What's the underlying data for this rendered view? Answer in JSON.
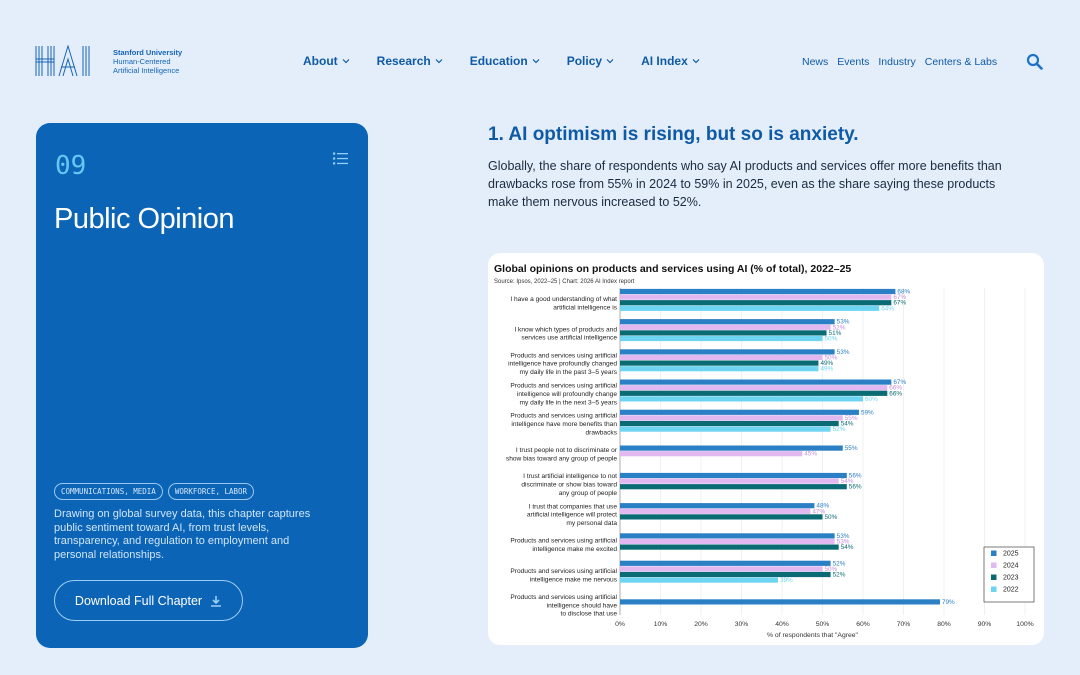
{
  "logo": {
    "abbr": "HAI",
    "line1": "Stanford University",
    "line2": "Human-Centered",
    "line3": "Artificial Intelligence"
  },
  "nav": {
    "main": [
      "About",
      "Research",
      "Education",
      "Policy",
      "AI Index"
    ],
    "secondary": [
      "News",
      "Events",
      "Industry",
      "Centers & Labs"
    ]
  },
  "card": {
    "chapter_number": "09",
    "title": "Public Opinion",
    "tags": [
      "COMMUNICATIONS, MEDIA",
      "WORKFORCE, LABOR"
    ],
    "description": "Drawing on global survey data, this chapter captures public sentiment toward AI, from  trust levels, transparency, and regulation to employment and personal relationships.",
    "download_label": "Download Full Chapter"
  },
  "section": {
    "heading": "1. AI optimism is rising, but so is anxiety.",
    "body": "Globally, the share of respondents who say AI products and services offer more benefits than drawbacks rose from 55% in 2024 to 59% in 2025, even as the share saying these products make them nervous increased to 52%."
  },
  "colors": {
    "accent": "#0f5aa6",
    "card": "#0c64b6",
    "s2025": "#2b7fc4",
    "s2024": "#e1b8f0",
    "s2023": "#0b6b74",
    "s2022": "#6fd4f1"
  },
  "chart_data": {
    "type": "bar",
    "orientation": "horizontal",
    "title": "Global opinions on products and services using AI (% of total), 2022–25",
    "subtitle": "Source: Ipsos, 2022–25 | Chart: 2026 AI Index report",
    "xlabel": "% of respondents that \"Agree\"",
    "xlim": [
      0,
      100
    ],
    "xticks": [
      "0%",
      "10%",
      "20%",
      "30%",
      "40%",
      "50%",
      "60%",
      "70%",
      "80%",
      "90%",
      "100%"
    ],
    "legend_position": "bottom-right",
    "categories": [
      [
        "I have a good understanding of what",
        "artificial intelligence is"
      ],
      [
        "I know which types of products and",
        "services use artificial intelligence"
      ],
      [
        "Products and services using artificial",
        "intelligence have profoundly changed",
        "my daily life in the past 3–5 years"
      ],
      [
        "Products and services using artificial",
        "intelligence will profoundly change",
        "my daily life in the next 3–5 years"
      ],
      [
        "Products and services using artificial",
        "intelligence have more benefits than",
        "drawbacks"
      ],
      [
        "I trust people not to discriminate or",
        "show bias toward any group of people"
      ],
      [
        "I trust artificial intelligence to not",
        "discriminate or show bias toward",
        "any group of people"
      ],
      [
        "I trust that companies that use",
        "artificial intelligence will protect",
        "my personal data"
      ],
      [
        "Products and services using artificial",
        "intelligence make me excited"
      ],
      [
        "Products and services using artificial",
        "intelligence make me nervous"
      ],
      [
        "Products and services using artificial",
        "intelligence should have",
        "to disclose that use"
      ]
    ],
    "series": [
      {
        "name": "2025",
        "values": [
          68,
          53,
          53,
          67,
          59,
          55,
          56,
          48,
          53,
          52,
          79
        ]
      },
      {
        "name": "2024",
        "values": [
          67,
          52,
          50,
          66,
          55,
          45,
          54,
          47,
          53,
          50,
          null
        ]
      },
      {
        "name": "2023",
        "values": [
          67,
          51,
          49,
          66,
          54,
          null,
          56,
          50,
          54,
          52,
          null
        ]
      },
      {
        "name": "2022",
        "values": [
          64,
          50,
          49,
          60,
          52,
          null,
          null,
          null,
          null,
          39,
          null
        ]
      }
    ]
  }
}
